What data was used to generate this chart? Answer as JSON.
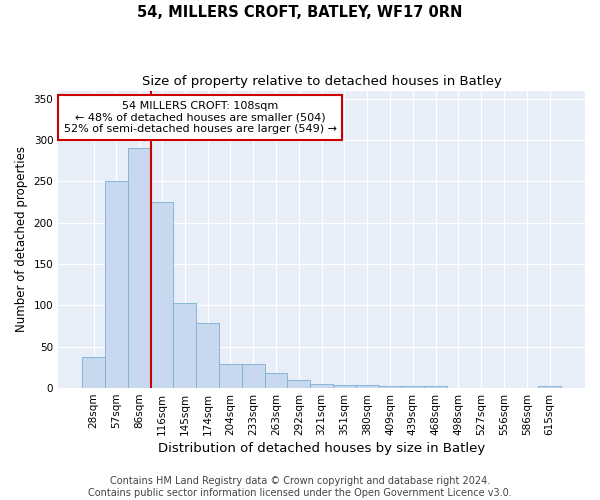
{
  "title": "54, MILLERS CROFT, BATLEY, WF17 0RN",
  "subtitle": "Size of property relative to detached houses in Batley",
  "xlabel": "Distribution of detached houses by size in Batley",
  "ylabel": "Number of detached properties",
  "bin_labels": [
    "28sqm",
    "57sqm",
    "86sqm",
    "116sqm",
    "145sqm",
    "174sqm",
    "204sqm",
    "233sqm",
    "263sqm",
    "292sqm",
    "321sqm",
    "351sqm",
    "380sqm",
    "409sqm",
    "439sqm",
    "468sqm",
    "498sqm",
    "527sqm",
    "556sqm",
    "586sqm",
    "615sqm"
  ],
  "bar_values": [
    38,
    250,
    290,
    225,
    103,
    79,
    29,
    29,
    18,
    10,
    5,
    4,
    4,
    3,
    3,
    3,
    0,
    0,
    0,
    0,
    2
  ],
  "bar_color": "#c8d9ef",
  "bar_edgecolor": "#7bafd4",
  "vline_index": 3,
  "vline_color": "#cc0000",
  "annotation_text": "54 MILLERS CROFT: 108sqm\n← 48% of detached houses are smaller (504)\n52% of semi-detached houses are larger (549) →",
  "annotation_box_color": "white",
  "annotation_box_edgecolor": "#cc0000",
  "ylim": [
    0,
    360
  ],
  "yticks": [
    0,
    50,
    100,
    150,
    200,
    250,
    300,
    350
  ],
  "bg_color": "#e8eef8",
  "footer_text": "Contains HM Land Registry data © Crown copyright and database right 2024.\nContains public sector information licensed under the Open Government Licence v3.0.",
  "title_fontsize": 10.5,
  "subtitle_fontsize": 9.5,
  "xlabel_fontsize": 9.5,
  "ylabel_fontsize": 8.5,
  "tick_fontsize": 7.5,
  "annotation_fontsize": 8,
  "footer_fontsize": 7
}
